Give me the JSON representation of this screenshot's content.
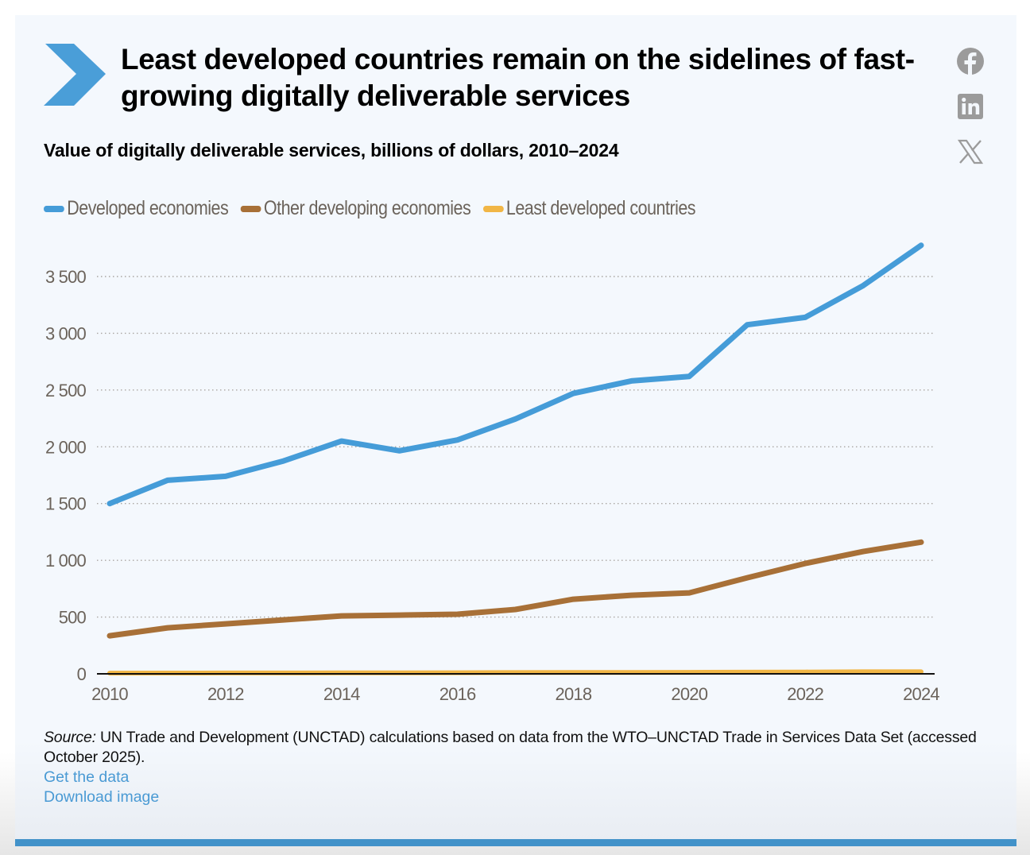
{
  "header": {
    "title": "Least developed countries remain on the sidelines of fast-growing digitally deliverable services",
    "subtitle": "Value of digitally deliverable services, billions of dollars, 2010–2024",
    "accent_color": "#4a9ed8"
  },
  "share": [
    {
      "name": "facebook-icon",
      "label": "Facebook"
    },
    {
      "name": "linkedin-icon",
      "label": "LinkedIn"
    },
    {
      "name": "x-icon",
      "label": "X"
    }
  ],
  "chart_data": {
    "type": "line",
    "title": "Value of digitally deliverable services, billions of dollars, 2010–2024",
    "xlabel": "",
    "ylabel": "",
    "x": [
      2010,
      2011,
      2012,
      2013,
      2014,
      2015,
      2016,
      2017,
      2018,
      2019,
      2020,
      2021,
      2022,
      2023,
      2024
    ],
    "xticks": [
      "2010",
      "2012",
      "2014",
      "2016",
      "2018",
      "2020",
      "2022",
      "2024"
    ],
    "xtick_values": [
      2010,
      2012,
      2014,
      2016,
      2018,
      2020,
      2022,
      2024
    ],
    "yticks": [
      "0",
      "500",
      "1 000",
      "1 500",
      "2 000",
      "2 500",
      "3 000",
      "3 500"
    ],
    "ytick_values": [
      0,
      500,
      1000,
      1500,
      2000,
      2500,
      3000,
      3500
    ],
    "xlim": [
      2010,
      2024
    ],
    "ylim": [
      0,
      3800
    ],
    "grid": "horizontal-dotted",
    "legend_position": "top-left",
    "series": [
      {
        "name": "Developed economies",
        "color": "#459cd8",
        "values": [
          1500,
          1705,
          1740,
          1875,
          2050,
          1965,
          2060,
          2245,
          2470,
          2580,
          2620,
          3075,
          3140,
          3420,
          3775
        ]
      },
      {
        "name": "Other developing economies",
        "color": "#a87037",
        "values": [
          335,
          405,
          440,
          475,
          510,
          517,
          525,
          567,
          657,
          692,
          713,
          846,
          972,
          1077,
          1160
        ]
      },
      {
        "name": "Least developed countries",
        "color": "#f1b646",
        "values": [
          6,
          7,
          8,
          8,
          9,
          9,
          10,
          11,
          12,
          12,
          13,
          15,
          16,
          18,
          18
        ]
      }
    ]
  },
  "footer": {
    "source_label": "Source:",
    "source_text": " UN Trade and Development (UNCTAD) calculations based on data from the WTO–UNCTAD Trade in Services Data Set (accessed October 2025).",
    "get_data": "Get the data",
    "download_image": "Download image"
  }
}
